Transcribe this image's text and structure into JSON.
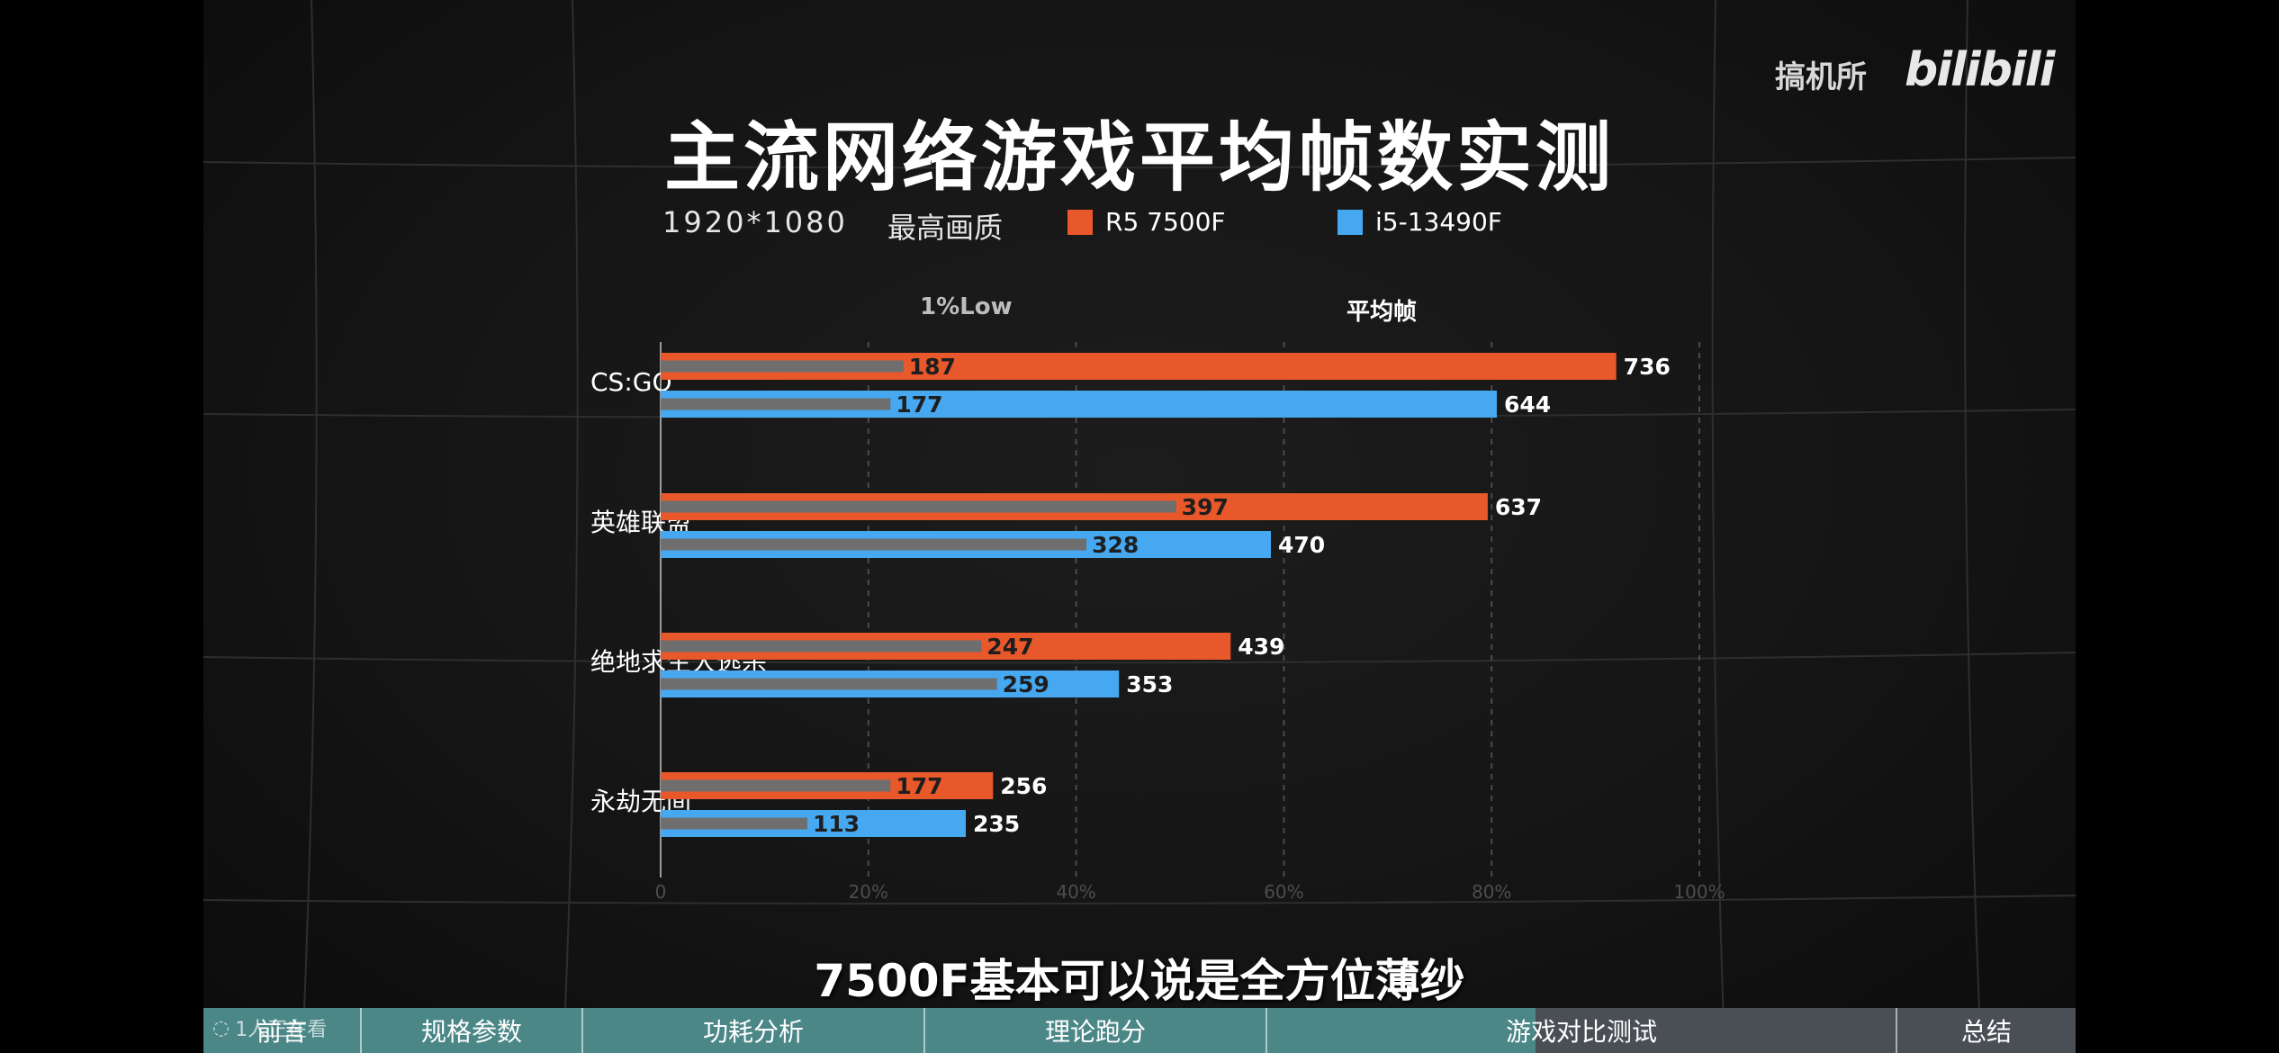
{
  "video": {
    "title": "主流网络游戏平均帧数实测",
    "resolution": "1920*1080",
    "quality": "最高画质",
    "logo_text": "搞机所",
    "logo_brand": "bilibili",
    "subtitle": "7500F基本可以说是全方位薄纱",
    "col_headers": {
      "low": "1%Low",
      "avg": "平均帧"
    },
    "watching": "1人正在看"
  },
  "colors": {
    "r5": "#e8582a",
    "i5": "#46a8f0",
    "low": "#6e6e6e",
    "nav_played": "#4b8787",
    "nav_rest": "#4a4f55"
  },
  "nav": {
    "chapters": [
      "前言",
      "规格参数",
      "功耗分析",
      "理论跑分",
      "游戏对比测试",
      "总结"
    ]
  },
  "chart_data": {
    "type": "bar",
    "orientation": "horizontal",
    "categories": [
      "CS:GO",
      "英雄联盟",
      "绝地求生大逃杀",
      "永劫无间"
    ],
    "series": [
      {
        "name": "R5 7500F",
        "avg": [
          736,
          637,
          439,
          256
        ],
        "low": [
          187,
          397,
          247,
          177
        ]
      },
      {
        "name": "i5-13490F",
        "avg": [
          644,
          470,
          353,
          235
        ],
        "low": [
          177,
          328,
          259,
          113
        ]
      }
    ],
    "x_ticks": [
      "0",
      "20%",
      "40%",
      "60%",
      "80%",
      "100%"
    ],
    "grid": true,
    "legend": "top"
  }
}
